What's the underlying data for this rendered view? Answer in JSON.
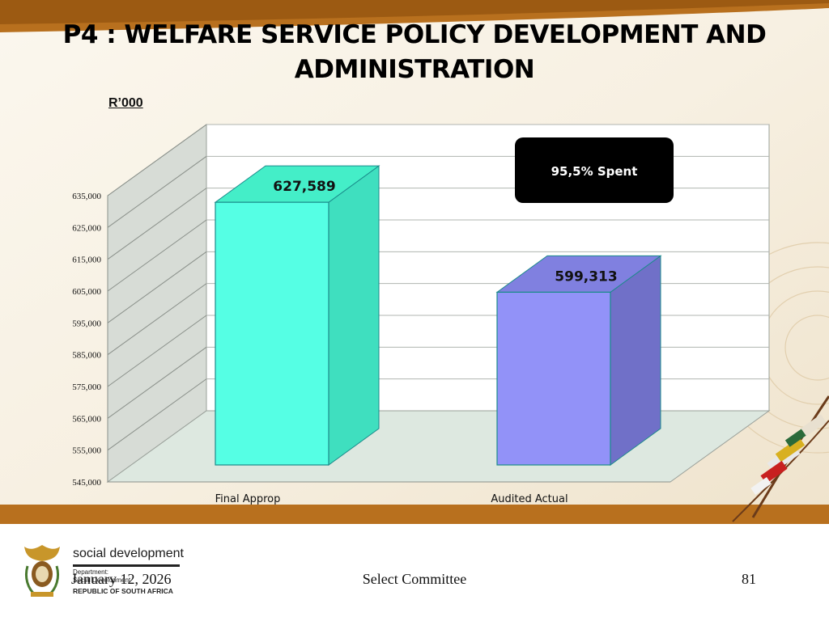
{
  "slide": {
    "title_line1": "P4 : WELFARE SERVICE POLICY DEVELOPMENT AND",
    "title_line2": "ADMINISTRATION",
    "unit_label": "R’000",
    "callout": "95,5% Spent"
  },
  "chart_data": {
    "type": "bar",
    "style": "3d-column",
    "categories": [
      "Final Approp",
      "Audited Actual"
    ],
    "values": [
      627589,
      599313
    ],
    "value_labels": [
      "627,589",
      "599,313"
    ],
    "ylim": [
      545000,
      635000
    ],
    "yticks": [
      545000,
      555000,
      565000,
      575000,
      585000,
      595000,
      605000,
      615000,
      625000,
      635000
    ],
    "ytick_labels": [
      "545,000",
      "555,000",
      "565,000",
      "575,000",
      "585,000",
      "595,000",
      "605,000",
      "615,000",
      "625,000",
      "635,000"
    ],
    "colors": {
      "bar1_front": "#55ffe4",
      "bar1_side": "#3fdfbf",
      "bar1_top": "#44eec8",
      "bar2_front": "#9292f8",
      "bar2_side": "#7070c8",
      "bar2_top": "#8080e0"
    },
    "grid": true,
    "legend": "none"
  },
  "footer": {
    "date": "January 12, 2026",
    "center": "Select Committee",
    "page": "81"
  },
  "logo": {
    "brand": "social development",
    "dept_line1": "Department:",
    "dept_line2": "Social Development",
    "country": "REPUBLIC OF SOUTH AFRICA"
  }
}
